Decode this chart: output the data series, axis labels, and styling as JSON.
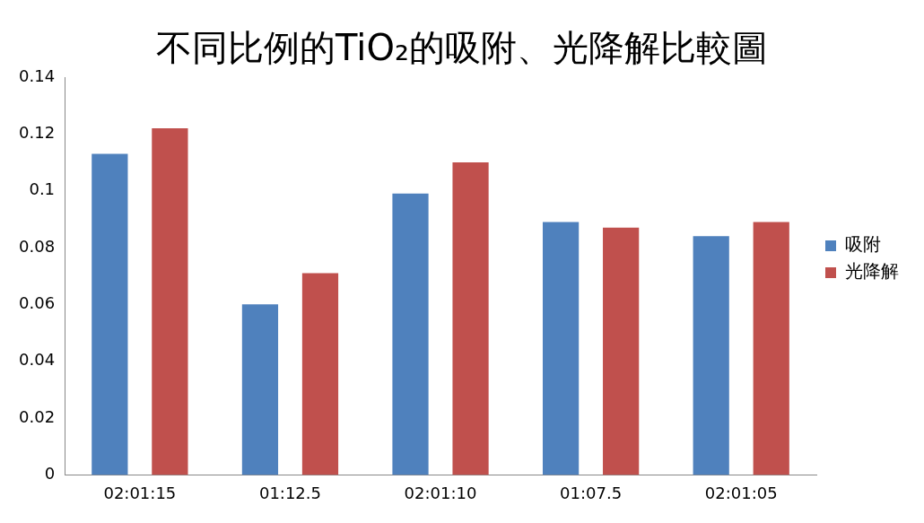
{
  "chart_data": {
    "type": "bar",
    "title": "不同比例的TiO₂的吸附、光降解比較圖",
    "categories": [
      "02:01:15",
      "01:12.5",
      "02:01:10",
      "01:07.5",
      "02:01:05"
    ],
    "series": [
      {
        "name": "吸附",
        "color": "#4f81bd",
        "values": [
          0.113,
          0.06,
          0.099,
          0.089,
          0.084
        ]
      },
      {
        "name": "光降解",
        "color": "#c0504d",
        "values": [
          0.122,
          0.071,
          0.11,
          0.087,
          0.089
        ]
      }
    ],
    "ylim": [
      0,
      0.14
    ],
    "yticks": [
      0,
      0.02,
      0.04,
      0.06,
      0.08,
      0.1,
      0.12,
      0.14
    ],
    "grid": false,
    "legend": "right"
  }
}
